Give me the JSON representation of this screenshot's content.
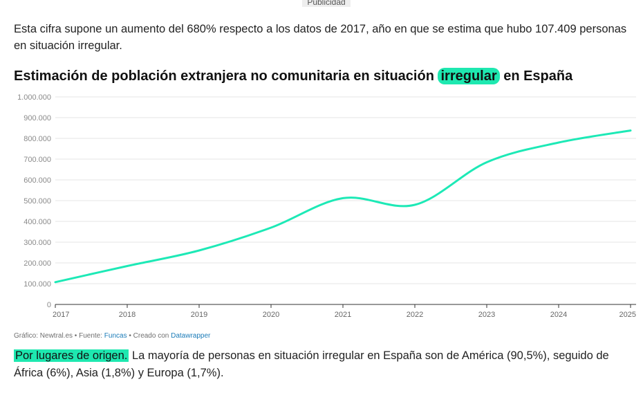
{
  "ad": {
    "label": "Publicidad"
  },
  "intro": {
    "text": "Esta cifra supone un aumento del 680% respecto a los datos de 2017, año en que se estima que hubo 107.409 personas en situación irregular."
  },
  "chart_data": {
    "type": "line",
    "title_before": "Estimación de población extranjera no comunitaria en situación ",
    "title_highlight": "irregular",
    "title_after": " en España",
    "x": [
      "2017",
      "2018",
      "2019",
      "2020",
      "2021",
      "2022",
      "2023",
      "2024",
      "2025"
    ],
    "series": [
      {
        "values": [
          107409,
          185000,
          260000,
          370000,
          512000,
          480000,
          685000,
          780000,
          838000
        ]
      }
    ],
    "ylim": [
      0,
      1000000
    ],
    "y_ticks": [
      0,
      100000,
      200000,
      300000,
      400000,
      500000,
      600000,
      700000,
      800000,
      900000,
      1000000
    ],
    "y_tick_labels": [
      "0",
      "100.000",
      "200.000",
      "300.000",
      "400.000",
      "500.000",
      "600.000",
      "700.000",
      "800.000",
      "900.000",
      "1.000.000"
    ],
    "line_color": "#1de9b6",
    "grid": true
  },
  "credits": {
    "prefix": "Gráfico: Newtral.es • Fuente: ",
    "source": "Funcas",
    "middle": " • Creado con ",
    "tool": "Datawrapper"
  },
  "bottom": {
    "highlight": "Por lugares de origen.",
    "text": " La mayoría de personas en situación irregular en España son de América (90,5%), seguido de África (6%), Asia (1,8%) y Europa (1,7%)."
  }
}
